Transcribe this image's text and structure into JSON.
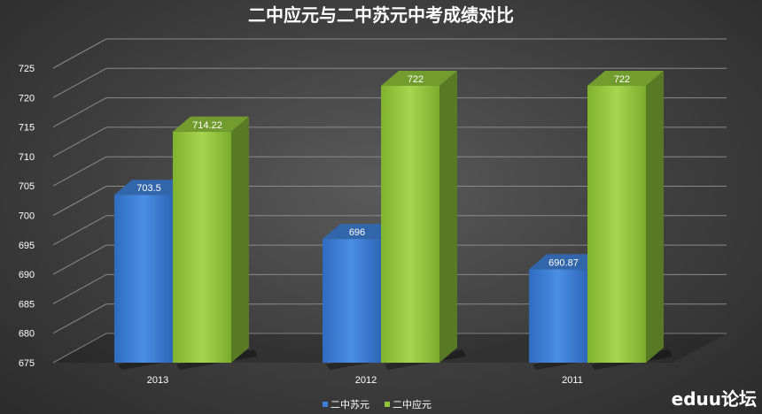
{
  "chart_data": {
    "type": "bar",
    "title": "二中应元与二中苏元中考成绩对比",
    "categories": [
      "2013",
      "2012",
      "2011"
    ],
    "series": [
      {
        "name": "二中苏元",
        "values": [
          703.5,
          696,
          690.87
        ],
        "labels": [
          "703.5",
          "696",
          "690.87"
        ],
        "color": "#3d7fd6"
      },
      {
        "name": "二中应元",
        "values": [
          714.22,
          722,
          722
        ],
        "labels": [
          "714.22",
          "722",
          "722"
        ],
        "color": "#8fc43a"
      }
    ],
    "ylim": [
      675,
      725
    ],
    "yticks": [
      "675",
      "680",
      "685",
      "690",
      "695",
      "700",
      "705",
      "710",
      "715",
      "720",
      "725"
    ],
    "grid": true,
    "legend": "bottom",
    "xlabel": "",
    "ylabel": ""
  },
  "watermark": "eduu论坛"
}
